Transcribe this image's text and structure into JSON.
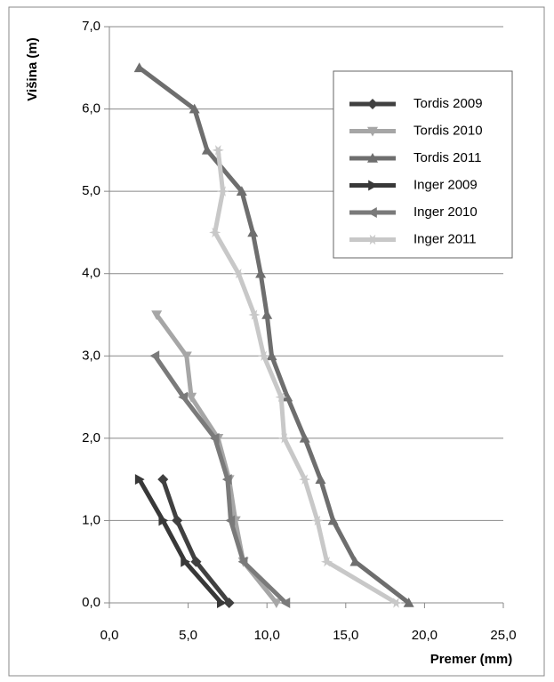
{
  "chart_data": {
    "type": "line",
    "xlabel": "Premer (mm)",
    "ylabel": "Višina (m)",
    "xlim": [
      0,
      25
    ],
    "ylim": [
      0,
      7
    ],
    "xticks": [
      {
        "value": 0,
        "label": "0,0"
      },
      {
        "value": 5,
        "label": "5,0"
      },
      {
        "value": 10,
        "label": "10,0"
      },
      {
        "value": 15,
        "label": "15,0"
      },
      {
        "value": 20,
        "label": "20,0"
      },
      {
        "value": 25,
        "label": "25,0"
      }
    ],
    "yticks": [
      {
        "value": 0,
        "label": "0,0"
      },
      {
        "value": 1,
        "label": "1,0"
      },
      {
        "value": 2,
        "label": "2,0"
      },
      {
        "value": 3,
        "label": "3,0"
      },
      {
        "value": 4,
        "label": "4,0"
      },
      {
        "value": 5,
        "label": "5,0"
      },
      {
        "value": 6,
        "label": "6,0"
      },
      {
        "value": 7,
        "label": "7,0"
      }
    ],
    "grid": true,
    "legend": "upper right",
    "series": [
      {
        "name": "Tordis 2009",
        "color": "#404040",
        "marker": "diamond",
        "x": [
          7.6,
          5.5,
          4.3,
          3.4
        ],
        "values": [
          0,
          0.5,
          1.0,
          1.5
        ]
      },
      {
        "name": "Tordis 2010",
        "color": "#a6a6a6",
        "marker": "triangle-down",
        "x": [
          10.6,
          8.5,
          8.0,
          7.6,
          6.9,
          5.2,
          4.9,
          3.0
        ],
        "values": [
          0,
          0.5,
          1.0,
          1.5,
          2.0,
          2.5,
          3.0,
          3.5
        ]
      },
      {
        "name": "Tordis 2011",
        "color": "#6e6e6e",
        "marker": "triangle-up",
        "x": [
          19.0,
          15.6,
          14.2,
          13.4,
          12.4,
          11.3,
          10.3,
          10.0,
          9.6,
          9.1,
          8.4,
          6.2,
          5.4,
          1.9
        ],
        "values": [
          0,
          0.5,
          1.0,
          1.5,
          2.0,
          2.5,
          3.0,
          3.5,
          4.0,
          4.5,
          5.0,
          5.5,
          6.0,
          6.5
        ]
      },
      {
        "name": "Inger 2009",
        "color": "#383838",
        "marker": "triangle-right",
        "x": [
          7.1,
          4.8,
          3.4,
          1.9
        ],
        "values": [
          0,
          0.5,
          1.0,
          1.5
        ]
      },
      {
        "name": "Inger 2010",
        "color": "#7a7a7a",
        "marker": "triangle-left",
        "x": [
          11.2,
          8.5,
          7.7,
          7.5,
          6.7,
          4.7,
          2.9
        ],
        "values": [
          0,
          0.5,
          1.0,
          1.5,
          2.0,
          2.5,
          3.0
        ]
      },
      {
        "name": "Inger 2011",
        "color": "#c8c8c8",
        "marker": "star",
        "x": [
          18.2,
          13.8,
          13.2,
          12.4,
          11.1,
          10.9,
          9.8,
          9.2,
          8.2,
          6.7,
          7.2,
          6.9
        ],
        "values": [
          0,
          0.5,
          1.0,
          1.5,
          2.0,
          2.5,
          3.0,
          3.5,
          4.0,
          4.5,
          5.0,
          5.5
        ]
      }
    ]
  }
}
